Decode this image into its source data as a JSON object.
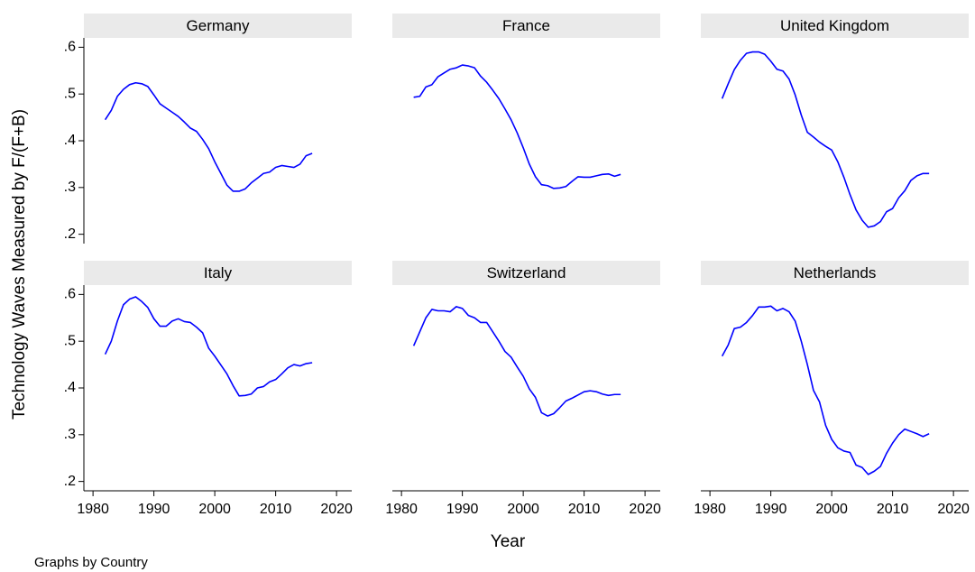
{
  "axes": {
    "ylabel": "Technology Waves Measured by F/(F+B)",
    "xlabel": "Year",
    "note": "Graphs by Country",
    "xlim": [
      1978.5,
      2022.5
    ],
    "xticks": [
      1980,
      1990,
      2000,
      2010,
      2020
    ],
    "ylim": [
      0.18,
      0.62
    ],
    "yticks": [
      {
        "value": 0.2,
        "label": ".2"
      },
      {
        "value": 0.3,
        "label": ".3"
      },
      {
        "value": 0.4,
        "label": ".4"
      },
      {
        "value": 0.5,
        "label": ".5"
      },
      {
        "value": 0.6,
        "label": ".6"
      }
    ]
  },
  "chart_data": [
    {
      "type": "line",
      "title": "Germany",
      "color": "#0000ff",
      "x": [
        1982,
        1983,
        1984,
        1985,
        1986,
        1987,
        1988,
        1989,
        1990,
        1991,
        1992,
        1993,
        1994,
        1995,
        1996,
        1997,
        1998,
        1999,
        2000,
        2001,
        2002,
        2003,
        2004,
        2005,
        2006,
        2007,
        2008,
        2009,
        2010,
        2011,
        2012,
        2013,
        2014,
        2015,
        2016
      ],
      "values": [
        0.445,
        0.465,
        0.495,
        0.51,
        0.52,
        0.524,
        0.522,
        0.516,
        0.498,
        0.479,
        0.47,
        0.461,
        0.452,
        0.44,
        0.427,
        0.42,
        0.403,
        0.383,
        0.355,
        0.33,
        0.305,
        0.292,
        0.292,
        0.297,
        0.31,
        0.32,
        0.33,
        0.333,
        0.343,
        0.347,
        0.345,
        0.343,
        0.35,
        0.368,
        0.373
      ]
    },
    {
      "type": "line",
      "title": "France",
      "color": "#0000ff",
      "x": [
        1982,
        1983,
        1984,
        1985,
        1986,
        1987,
        1988,
        1989,
        1990,
        1991,
        1992,
        1993,
        1994,
        1995,
        1996,
        1997,
        1998,
        1999,
        2000,
        2001,
        2002,
        2003,
        2004,
        2005,
        2006,
        2007,
        2008,
        2009,
        2010,
        2011,
        2012,
        2013,
        2014,
        2015,
        2016
      ],
      "values": [
        0.493,
        0.495,
        0.515,
        0.52,
        0.537,
        0.545,
        0.553,
        0.556,
        0.562,
        0.56,
        0.556,
        0.538,
        0.525,
        0.508,
        0.49,
        0.468,
        0.445,
        0.417,
        0.385,
        0.35,
        0.323,
        0.306,
        0.304,
        0.298,
        0.299,
        0.302,
        0.313,
        0.323,
        0.322,
        0.322,
        0.325,
        0.328,
        0.329,
        0.324,
        0.328
      ]
    },
    {
      "type": "line",
      "title": "United Kingdom",
      "color": "#0000ff",
      "x": [
        1982,
        1983,
        1984,
        1985,
        1986,
        1987,
        1988,
        1989,
        1990,
        1991,
        1992,
        1993,
        1994,
        1995,
        1996,
        1997,
        1998,
        1999,
        2000,
        2001,
        2002,
        2003,
        2004,
        2005,
        2006,
        2007,
        2008,
        2009,
        2010,
        2011,
        2012,
        2013,
        2014,
        2015,
        2016
      ],
      "values": [
        0.49,
        0.522,
        0.552,
        0.572,
        0.587,
        0.59,
        0.59,
        0.585,
        0.57,
        0.553,
        0.549,
        0.532,
        0.498,
        0.455,
        0.418,
        0.408,
        0.397,
        0.388,
        0.38,
        0.355,
        0.322,
        0.285,
        0.252,
        0.23,
        0.215,
        0.218,
        0.227,
        0.248,
        0.255,
        0.278,
        0.293,
        0.315,
        0.325,
        0.33,
        0.33
      ]
    },
    {
      "type": "line",
      "title": "Italy",
      "color": "#0000ff",
      "x": [
        1982,
        1983,
        1984,
        1985,
        1986,
        1987,
        1988,
        1989,
        1990,
        1991,
        1992,
        1993,
        1994,
        1995,
        1996,
        1997,
        1998,
        1999,
        2000,
        2001,
        2002,
        2003,
        2004,
        2005,
        2006,
        2007,
        2008,
        2009,
        2010,
        2011,
        2012,
        2013,
        2014,
        2015,
        2016
      ],
      "values": [
        0.472,
        0.5,
        0.543,
        0.578,
        0.59,
        0.595,
        0.585,
        0.572,
        0.548,
        0.532,
        0.532,
        0.543,
        0.548,
        0.542,
        0.54,
        0.53,
        0.518,
        0.485,
        0.468,
        0.449,
        0.43,
        0.405,
        0.383,
        0.384,
        0.387,
        0.4,
        0.403,
        0.413,
        0.418,
        0.43,
        0.443,
        0.45,
        0.447,
        0.452,
        0.454
      ]
    },
    {
      "type": "line",
      "title": "Switzerland",
      "color": "#0000ff",
      "x": [
        1982,
        1983,
        1984,
        1985,
        1986,
        1987,
        1988,
        1989,
        1990,
        1991,
        1992,
        1993,
        1994,
        1995,
        1996,
        1997,
        1998,
        1999,
        2000,
        2001,
        2002,
        2003,
        2004,
        2005,
        2006,
        2007,
        2008,
        2009,
        2010,
        2011,
        2012,
        2013,
        2014,
        2015,
        2016
      ],
      "values": [
        0.49,
        0.52,
        0.55,
        0.568,
        0.565,
        0.565,
        0.563,
        0.574,
        0.57,
        0.555,
        0.55,
        0.54,
        0.54,
        0.52,
        0.5,
        0.478,
        0.466,
        0.445,
        0.425,
        0.398,
        0.38,
        0.347,
        0.34,
        0.345,
        0.358,
        0.372,
        0.378,
        0.385,
        0.392,
        0.394,
        0.392,
        0.387,
        0.384,
        0.386,
        0.386
      ]
    },
    {
      "type": "line",
      "title": "Netherlands",
      "color": "#0000ff",
      "x": [
        1982,
        1983,
        1984,
        1985,
        1986,
        1987,
        1988,
        1989,
        1990,
        1991,
        1992,
        1993,
        1994,
        1995,
        1996,
        1997,
        1998,
        1999,
        2000,
        2001,
        2002,
        2003,
        2004,
        2005,
        2006,
        2007,
        2008,
        2009,
        2010,
        2011,
        2012,
        2013,
        2014,
        2015,
        2016
      ],
      "values": [
        0.468,
        0.492,
        0.527,
        0.53,
        0.54,
        0.555,
        0.573,
        0.573,
        0.575,
        0.565,
        0.57,
        0.563,
        0.543,
        0.5,
        0.45,
        0.395,
        0.37,
        0.32,
        0.29,
        0.272,
        0.265,
        0.262,
        0.235,
        0.23,
        0.215,
        0.222,
        0.232,
        0.26,
        0.282,
        0.3,
        0.312,
        0.307,
        0.302,
        0.296,
        0.302
      ]
    }
  ]
}
